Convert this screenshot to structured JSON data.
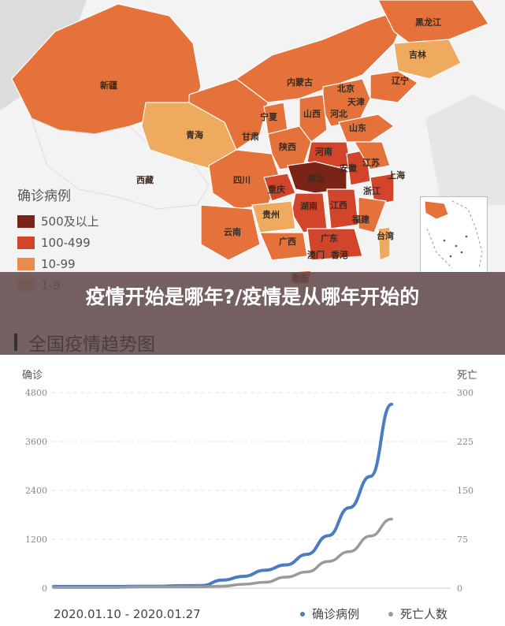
{
  "headline": "疫情开始是哪年?/疫情是从哪年开始的",
  "map": {
    "provinces": {
      "xinjiang": "新疆",
      "xizang": "西藏",
      "qinghai": "青海",
      "gansu": "甘肃",
      "neimenggu": "内蒙古",
      "ningxia": "宁夏",
      "shaanxi": "陕西",
      "sichuan": "四川",
      "chongqing": "重庆",
      "yunnan": "云南",
      "guizhou": "贵州",
      "guangxi": "广西",
      "hunan": "湖南",
      "hubei": "湖北",
      "henan": "河南",
      "shanxi": "山西",
      "hebei": "河北",
      "beijing": "北京",
      "tianjin": "天津",
      "shandong": "山东",
      "liaoning": "辽宁",
      "jilin": "吉林",
      "heilongjiang": "黑龙江",
      "jiangsu": "江苏",
      "anhui": "安徽",
      "shanghai": "上海",
      "zhejiang": "浙江",
      "jiangxi": "江西",
      "fujian": "福建",
      "guangdong": "广东",
      "hainan": "海南",
      "taiwan": "台湾",
      "aomen": "澳门",
      "xianggang": "香港"
    },
    "legend": {
      "title": "确诊病例",
      "items": [
        {
          "label": "500及以上",
          "color": "#7a2418"
        },
        {
          "label": "100-499",
          "color": "#d2452b"
        },
        {
          "label": "10-99",
          "color": "#ea8a4c"
        },
        {
          "label": "1-9",
          "color": "#f2c089"
        }
      ]
    },
    "colors": {
      "high": "#7a2418",
      "midhigh": "#d2452b",
      "mid": "#e07a3c",
      "low": "#eeaa5e",
      "base": "#e4723a"
    }
  },
  "chart_header": "全国疫情趋势图",
  "chart_data": {
    "type": "line",
    "left_axis_title": "确诊",
    "right_axis_title": "死亡",
    "left_ticks": [
      "0",
      "1200",
      "2400",
      "3600",
      "4800"
    ],
    "right_ticks": [
      "0",
      "75",
      "150",
      "225",
      "300"
    ],
    "ylim_left": [
      0,
      4800
    ],
    "ylim_right": [
      0,
      300
    ],
    "date_range": "2020.01.10 - 2020.01.27",
    "series": [
      {
        "name": "确诊病例",
        "color": "#4a7cc4",
        "axis": "left",
        "values": [
          40,
          41,
          41,
          41,
          45,
          45,
          60,
          62,
          198,
          291,
          440,
          571,
          830,
          1287,
          1975,
          2744,
          4515
        ]
      },
      {
        "name": "死亡人数",
        "color": "#9a9a9a",
        "axis": "right",
        "values": [
          1,
          1,
          1,
          1,
          2,
          2,
          2,
          2,
          3,
          6,
          9,
          17,
          25,
          41,
          56,
          80,
          106
        ]
      }
    ]
  }
}
